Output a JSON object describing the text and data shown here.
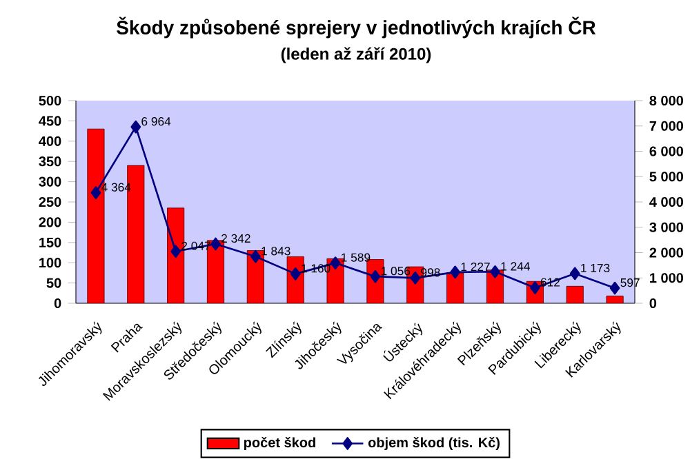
{
  "chart_data": {
    "type": "bar",
    "title": "Škody způsobené sprejery v jednotlivých krajích ČR",
    "subtitle": "(leden až září 2010)",
    "categories": [
      "Jihomoravský",
      "Praha",
      "Moravskoslezský",
      "Středočeský",
      "Olomoucký",
      "Zlínský",
      "Jihočeský",
      "Vysočina",
      "Ústecký",
      "Královéhradecký",
      "Plzeňský",
      "Pardubický",
      "Liberecký",
      "Karlovarský"
    ],
    "series": [
      {
        "name": "počet škod",
        "color": "#ff0000",
        "values": [
          430,
          340,
          235,
          155,
          130,
          115,
          110,
          108,
          90,
          75,
          82,
          54,
          42,
          18
        ]
      },
      {
        "name": "objem škod (tis. Kč)",
        "type": "line",
        "axis": "y2",
        "color": "#000080",
        "marker": "diamond",
        "values": [
          4364,
          6964,
          2047,
          2342,
          1843,
          1160,
          1589,
          1056,
          998,
          1227,
          1244,
          612,
          1173,
          597
        ],
        "value_labels": [
          "4 364",
          "6 964",
          "2 047",
          "2 342",
          "1 843",
          "1 160",
          "1 589",
          "1 056",
          "998",
          "1 227",
          "1 244",
          "612",
          "1 173",
          "597"
        ]
      }
    ],
    "ylim": [
      0,
      500
    ],
    "yticks": [
      0,
      50,
      100,
      150,
      200,
      250,
      300,
      350,
      400,
      450,
      500
    ],
    "y2lim": [
      0,
      8000
    ],
    "y2ticks": [
      {
        "value": 0,
        "label": "0"
      },
      {
        "value": 1000,
        "label": "1 000"
      },
      {
        "value": 2000,
        "label": "2 000"
      },
      {
        "value": 3000,
        "label": "3 000"
      },
      {
        "value": 4000,
        "label": "4 000"
      },
      {
        "value": 5000,
        "label": "5 000"
      },
      {
        "value": 6000,
        "label": "6 000"
      },
      {
        "value": 7000,
        "label": "7 000"
      },
      {
        "value": 8000,
        "label": "8 000"
      }
    ],
    "grid": false,
    "legend": "bottom"
  }
}
